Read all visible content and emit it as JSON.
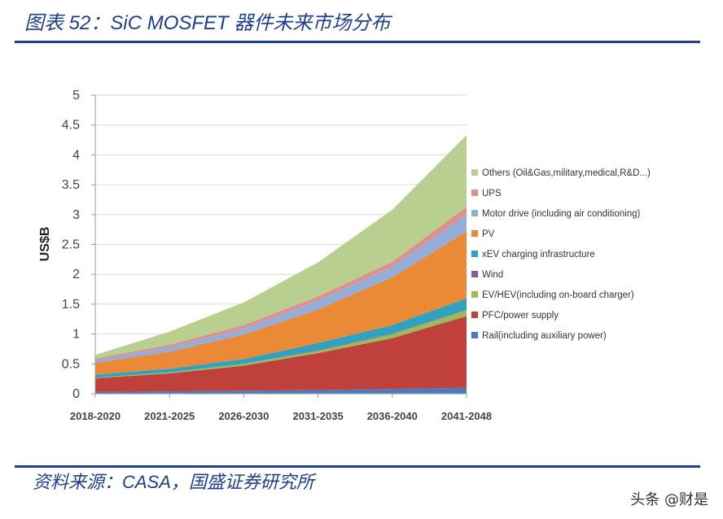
{
  "header": {
    "figure_title": "图表 52：SiC MOSFET 器件未来市场分布"
  },
  "footer": {
    "source": "资料来源：CASA，国盛证券研究所",
    "watermark": "头条 @财是"
  },
  "chart_data": {
    "type": "area",
    "stacked": true,
    "title": "",
    "xlabel": "",
    "ylabel": "US$B",
    "ylim": [
      0,
      5
    ],
    "yticks": [
      0,
      0.5,
      1,
      1.5,
      2,
      2.5,
      3,
      3.5,
      4,
      4.5,
      5
    ],
    "grid": true,
    "legend_position": "right",
    "categories": [
      "2018-2020",
      "2021-2025",
      "2026-2030",
      "2031-2035",
      "2036-2040",
      "2041-2048"
    ],
    "series": [
      {
        "name": "Rail(including auxiliary power)",
        "color": "#4a7bbf",
        "values": [
          0.03,
          0.04,
          0.05,
          0.06,
          0.08,
          0.1
        ]
      },
      {
        "name": "PFC/power supply",
        "color": "#c0403c",
        "values": [
          0.23,
          0.3,
          0.42,
          0.62,
          0.85,
          1.2
        ]
      },
      {
        "name": "EV/HEV(including on-board charger)",
        "color": "#9bbb59",
        "values": [
          0.01,
          0.02,
          0.03,
          0.04,
          0.07,
          0.1
        ]
      },
      {
        "name": "Wind",
        "color": "#7d5fa6",
        "values": [
          0.0,
          0.0,
          0.0,
          0.01,
          0.01,
          0.01
        ]
      },
      {
        "name": "xEV charging infrastructure",
        "color": "#31a1c0",
        "values": [
          0.05,
          0.06,
          0.08,
          0.12,
          0.14,
          0.19
        ]
      },
      {
        "name": "PV",
        "color": "#ea8a36",
        "values": [
          0.2,
          0.28,
          0.41,
          0.56,
          0.8,
          1.12
        ]
      },
      {
        "name": "Motor drive (including air conditioning)",
        "color": "#95add9",
        "values": [
          0.05,
          0.08,
          0.1,
          0.15,
          0.18,
          0.28
        ]
      },
      {
        "name": "UPS",
        "color": "#e0908c",
        "values": [
          0.02,
          0.04,
          0.06,
          0.07,
          0.08,
          0.13
        ]
      },
      {
        "name": "Others (Oil&Gas,military,medical,R&D...)",
        "color": "#b8cf8f",
        "values": [
          0.06,
          0.22,
          0.38,
          0.57,
          0.87,
          1.2
        ]
      }
    ]
  }
}
